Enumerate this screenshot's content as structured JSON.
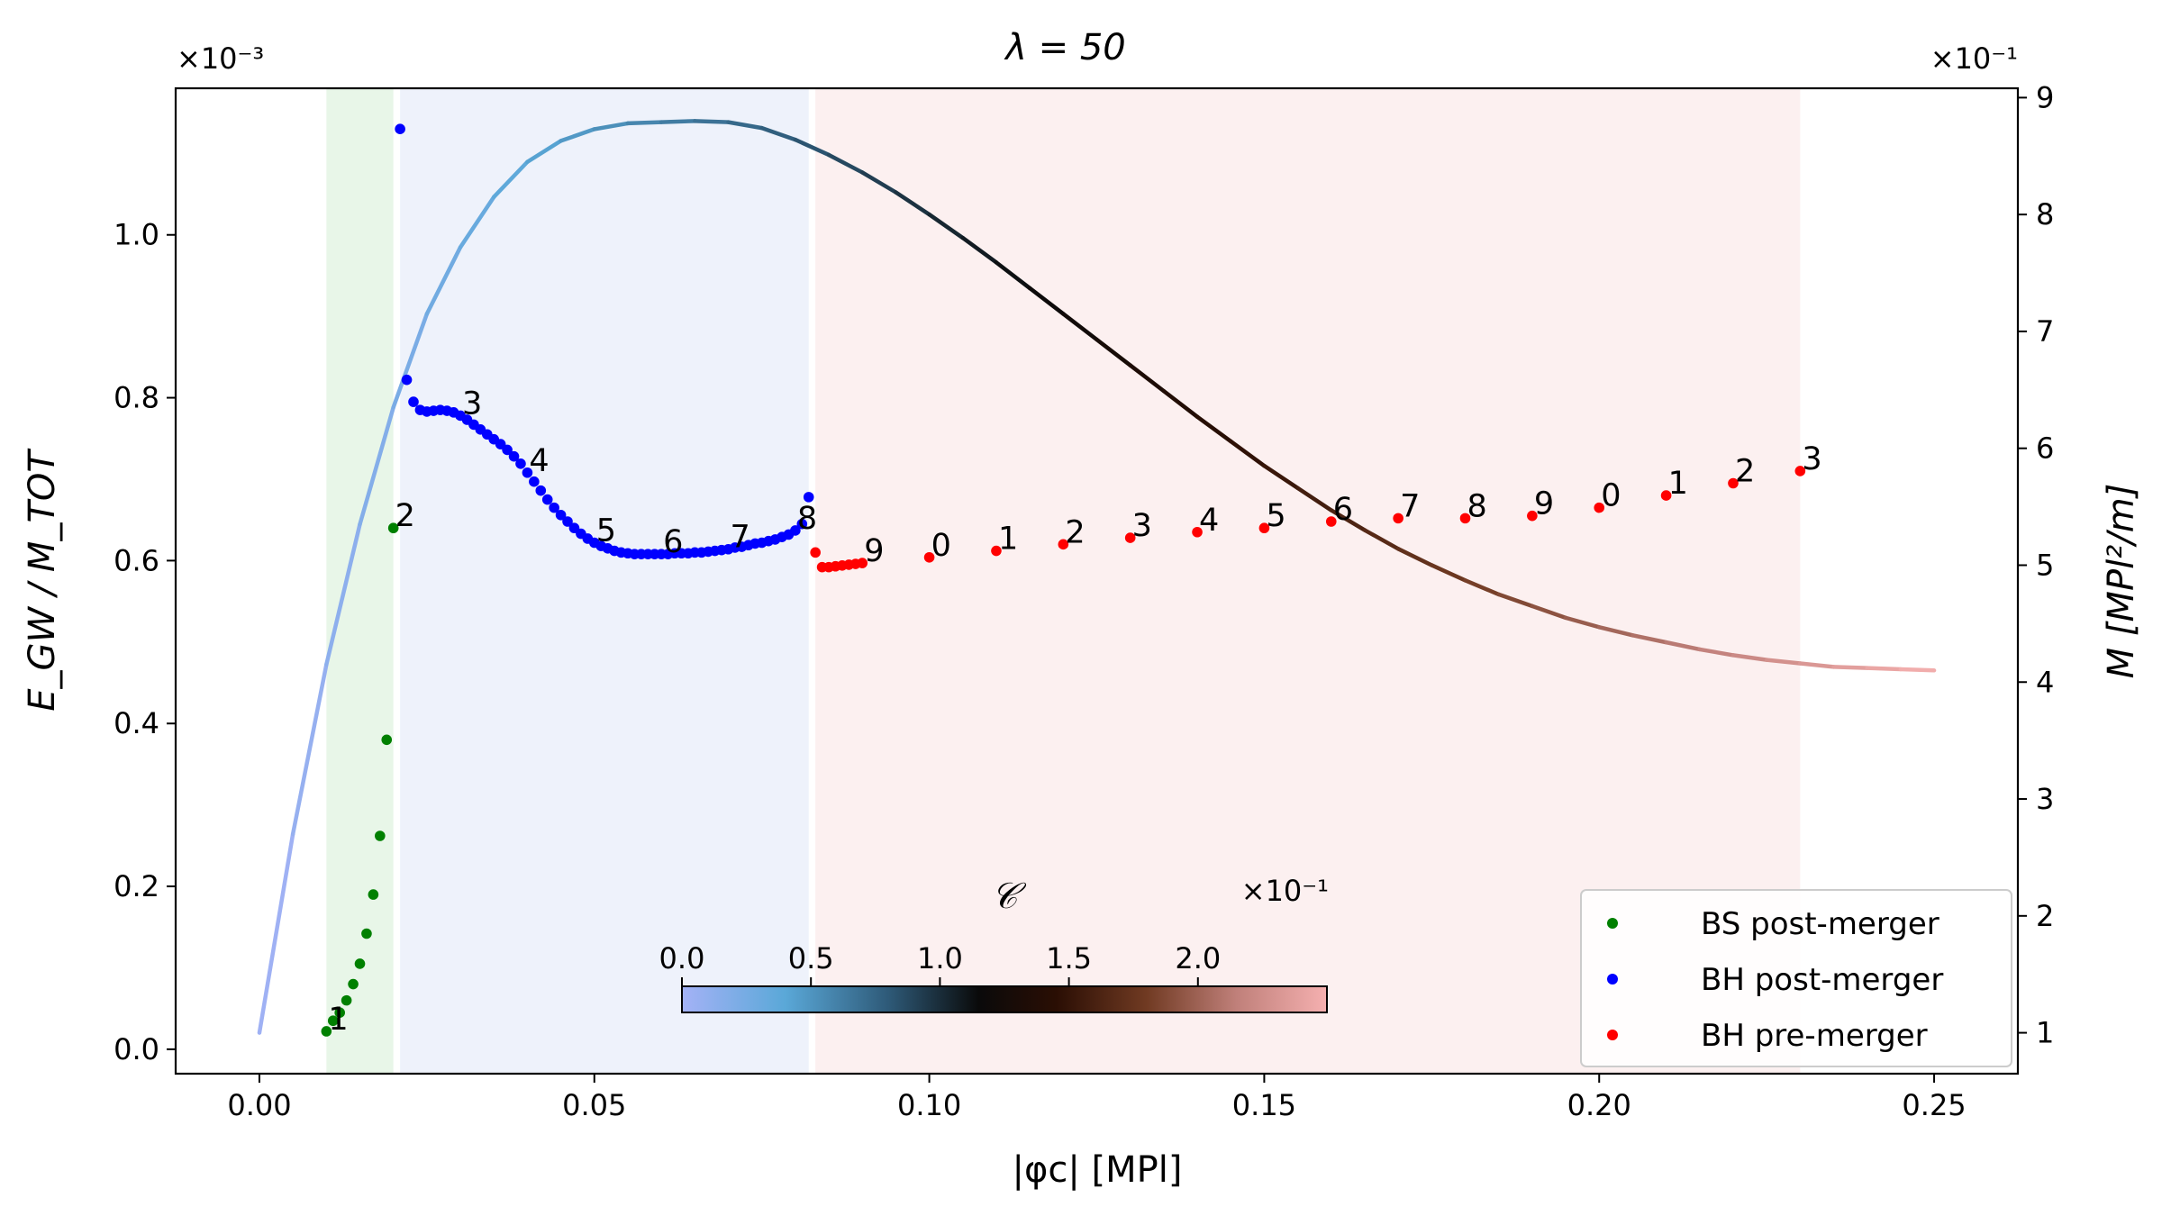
{
  "chart_data": {
    "type": "scatter",
    "title": "λ = 50",
    "xlabel": "|φc| [MPl]",
    "ylabel": "E_GW / M_TOT",
    "y2label": "M [MPl²/m]",
    "y2label_color": "#800080",
    "xlim": [
      -0.0125,
      0.2625
    ],
    "ylim": [
      -3e-05,
      0.00118
    ],
    "y2lim": [
      0.65,
      9.08
    ],
    "x_ticks": [
      0.0,
      0.05,
      0.1,
      0.15,
      0.2,
      0.25
    ],
    "x_tick_labels": [
      "0.00",
      "0.05",
      "0.10",
      "0.15",
      "0.20",
      "0.25"
    ],
    "y_ticks": [
      0.0,
      0.0002,
      0.0004,
      0.0006,
      0.0008,
      0.001
    ],
    "y_tick_labels": [
      "0.0",
      "0.2",
      "0.4",
      "0.6",
      "0.8",
      "1.0"
    ],
    "y_offset_label": "×10⁻³",
    "y2_ticks": [
      1,
      2,
      3,
      4,
      5,
      6,
      7,
      8,
      9
    ],
    "y2_tick_labels": [
      "1",
      "2",
      "3",
      "4",
      "5",
      "6",
      "7",
      "8",
      "9"
    ],
    "y2_offset_label": "×10⁻¹",
    "shaded_regions": [
      {
        "name": "BS region",
        "x": [
          0.01,
          0.02
        ],
        "color": "#e8f6e8"
      },
      {
        "name": "BH post-merger region",
        "x": [
          0.021,
          0.082
        ],
        "color": "#eef2fb"
      },
      {
        "name": "BH pre-merger region",
        "x": [
          0.083,
          0.23
        ],
        "color": "#fcf0f0"
      }
    ],
    "mass_curve": {
      "name": "M (right axis, colored by compactness C)",
      "x": [
        0.0,
        0.005,
        0.01,
        0.015,
        0.02,
        0.025,
        0.03,
        0.035,
        0.04,
        0.045,
        0.05,
        0.055,
        0.06,
        0.065,
        0.07,
        0.075,
        0.08,
        0.085,
        0.09,
        0.095,
        0.1,
        0.105,
        0.11,
        0.115,
        0.12,
        0.125,
        0.13,
        0.135,
        0.14,
        0.145,
        0.15,
        0.155,
        0.16,
        0.165,
        0.17,
        0.175,
        0.18,
        0.185,
        0.19,
        0.195,
        0.2,
        0.205,
        0.21,
        0.215,
        0.22,
        0.225,
        0.23,
        0.235,
        0.24,
        0.245,
        0.25
      ],
      "y": [
        1.0,
        2.7,
        4.15,
        5.35,
        6.35,
        7.15,
        7.72,
        8.15,
        8.45,
        8.63,
        8.73,
        8.78,
        8.79,
        8.8,
        8.79,
        8.74,
        8.64,
        8.51,
        8.36,
        8.19,
        8.0,
        7.8,
        7.59,
        7.37,
        7.15,
        6.93,
        6.71,
        6.49,
        6.27,
        6.06,
        5.85,
        5.66,
        5.47,
        5.3,
        5.14,
        5.0,
        4.87,
        4.75,
        4.65,
        4.55,
        4.47,
        4.4,
        4.34,
        4.28,
        4.23,
        4.19,
        4.16,
        4.13,
        4.12,
        4.11,
        4.1
      ]
    },
    "colorbar": {
      "label": "𝒞",
      "offset_label": "×10⁻¹",
      "ticks": [
        0.0,
        0.5,
        1.0,
        1.5,
        2.0
      ],
      "tick_labels": [
        "0.0",
        "0.5",
        "1.0",
        "1.5",
        "2.0"
      ],
      "range": [
        0.0,
        2.5
      ]
    },
    "series": [
      {
        "name": "BS post-merger",
        "color": "#008000",
        "x": [
          0.01,
          0.011,
          0.012,
          0.013,
          0.014,
          0.015,
          0.016,
          0.017,
          0.018,
          0.019,
          0.02
        ],
        "y": [
          2.2e-05,
          3.5e-05,
          4.5e-05,
          6e-05,
          8e-05,
          0.000105,
          0.000142,
          0.00019,
          0.000262,
          0.00038,
          0.00064
        ]
      },
      {
        "name": "BH post-merger",
        "color": "#0000ff",
        "x": [
          0.021,
          0.022,
          0.023,
          0.024,
          0.025,
          0.026,
          0.027,
          0.028,
          0.029,
          0.03,
          0.031,
          0.032,
          0.033,
          0.034,
          0.035,
          0.036,
          0.037,
          0.038,
          0.039,
          0.04,
          0.041,
          0.042,
          0.043,
          0.044,
          0.045,
          0.046,
          0.047,
          0.048,
          0.049,
          0.05,
          0.051,
          0.052,
          0.053,
          0.054,
          0.055,
          0.056,
          0.057,
          0.058,
          0.059,
          0.06,
          0.061,
          0.062,
          0.063,
          0.064,
          0.065,
          0.066,
          0.067,
          0.068,
          0.069,
          0.07,
          0.071,
          0.072,
          0.073,
          0.074,
          0.075,
          0.076,
          0.077,
          0.078,
          0.079,
          0.08,
          0.081,
          0.082
        ],
        "y": [
          0.00113,
          0.000822,
          0.000795,
          0.000785,
          0.000783,
          0.000784,
          0.000785,
          0.000784,
          0.000782,
          0.000778,
          0.000773,
          0.000767,
          0.000761,
          0.000755,
          0.000749,
          0.000743,
          0.000736,
          0.000728,
          0.000719,
          0.000708,
          0.000697,
          0.000686,
          0.000675,
          0.000665,
          0.000656,
          0.000648,
          0.00064,
          0.000633,
          0.000627,
          0.000622,
          0.000618,
          0.000615,
          0.000612,
          0.00061,
          0.000609,
          0.000608,
          0.000608,
          0.000608,
          0.000608,
          0.000608,
          0.000608,
          0.000609,
          0.000609,
          0.000609,
          0.00061,
          0.00061,
          0.000611,
          0.000612,
          0.000613,
          0.000614,
          0.000616,
          0.000617,
          0.000619,
          0.000621,
          0.000622,
          0.000624,
          0.000626,
          0.000629,
          0.000632,
          0.000637,
          0.000645,
          0.000678
        ]
      },
      {
        "name": "BH pre-merger",
        "color": "#ff0000",
        "x": [
          0.083,
          0.084,
          0.085,
          0.086,
          0.087,
          0.088,
          0.089,
          0.09,
          0.1,
          0.11,
          0.12,
          0.13,
          0.14,
          0.15,
          0.16,
          0.17,
          0.18,
          0.19,
          0.2,
          0.21,
          0.22,
          0.23
        ],
        "y": [
          0.00061,
          0.000592,
          0.000592,
          0.000593,
          0.000594,
          0.000595,
          0.000596,
          0.000597,
          0.000604,
          0.000612,
          0.00062,
          0.000628,
          0.000635,
          0.00064,
          0.000648,
          0.000652,
          0.000652,
          0.000655,
          0.000665,
          0.00068,
          0.000695,
          0.00071
        ]
      }
    ],
    "annotations": [
      {
        "text": "1",
        "x": 0.01,
        "y": 2.2e-05
      },
      {
        "text": "2",
        "x": 0.02,
        "y": 0.00064
      },
      {
        "text": "3",
        "x": 0.03,
        "y": 0.000778
      },
      {
        "text": "4",
        "x": 0.04,
        "y": 0.000708
      },
      {
        "text": "5",
        "x": 0.05,
        "y": 0.000622
      },
      {
        "text": "6",
        "x": 0.06,
        "y": 0.000608
      },
      {
        "text": "7",
        "x": 0.07,
        "y": 0.000614
      },
      {
        "text": "8",
        "x": 0.08,
        "y": 0.000637
      },
      {
        "text": "9",
        "x": 0.09,
        "y": 0.000597
      },
      {
        "text": "0",
        "x": 0.1,
        "y": 0.000604
      },
      {
        "text": "1",
        "x": 0.11,
        "y": 0.000612
      },
      {
        "text": "2",
        "x": 0.12,
        "y": 0.00062
      },
      {
        "text": "3",
        "x": 0.13,
        "y": 0.000628
      },
      {
        "text": "4",
        "x": 0.14,
        "y": 0.000635
      },
      {
        "text": "5",
        "x": 0.15,
        "y": 0.00064
      },
      {
        "text": "6",
        "x": 0.16,
        "y": 0.000648
      },
      {
        "text": "7",
        "x": 0.17,
        "y": 0.000652
      },
      {
        "text": "8",
        "x": 0.18,
        "y": 0.000652
      },
      {
        "text": "9",
        "x": 0.19,
        "y": 0.000655
      },
      {
        "text": "0",
        "x": 0.2,
        "y": 0.000665
      },
      {
        "text": "1",
        "x": 0.21,
        "y": 0.00068
      },
      {
        "text": "2",
        "x": 0.22,
        "y": 0.000695
      },
      {
        "text": "3",
        "x": 0.23,
        "y": 0.00071
      }
    ],
    "legend": {
      "position": "bottom-right",
      "entries": [
        {
          "label": "BS post-merger",
          "color": "#008000"
        },
        {
          "label": "BH post-merger",
          "color": "#0000ff"
        },
        {
          "label": "BH pre-merger",
          "color": "#ff0000"
        }
      ]
    }
  }
}
